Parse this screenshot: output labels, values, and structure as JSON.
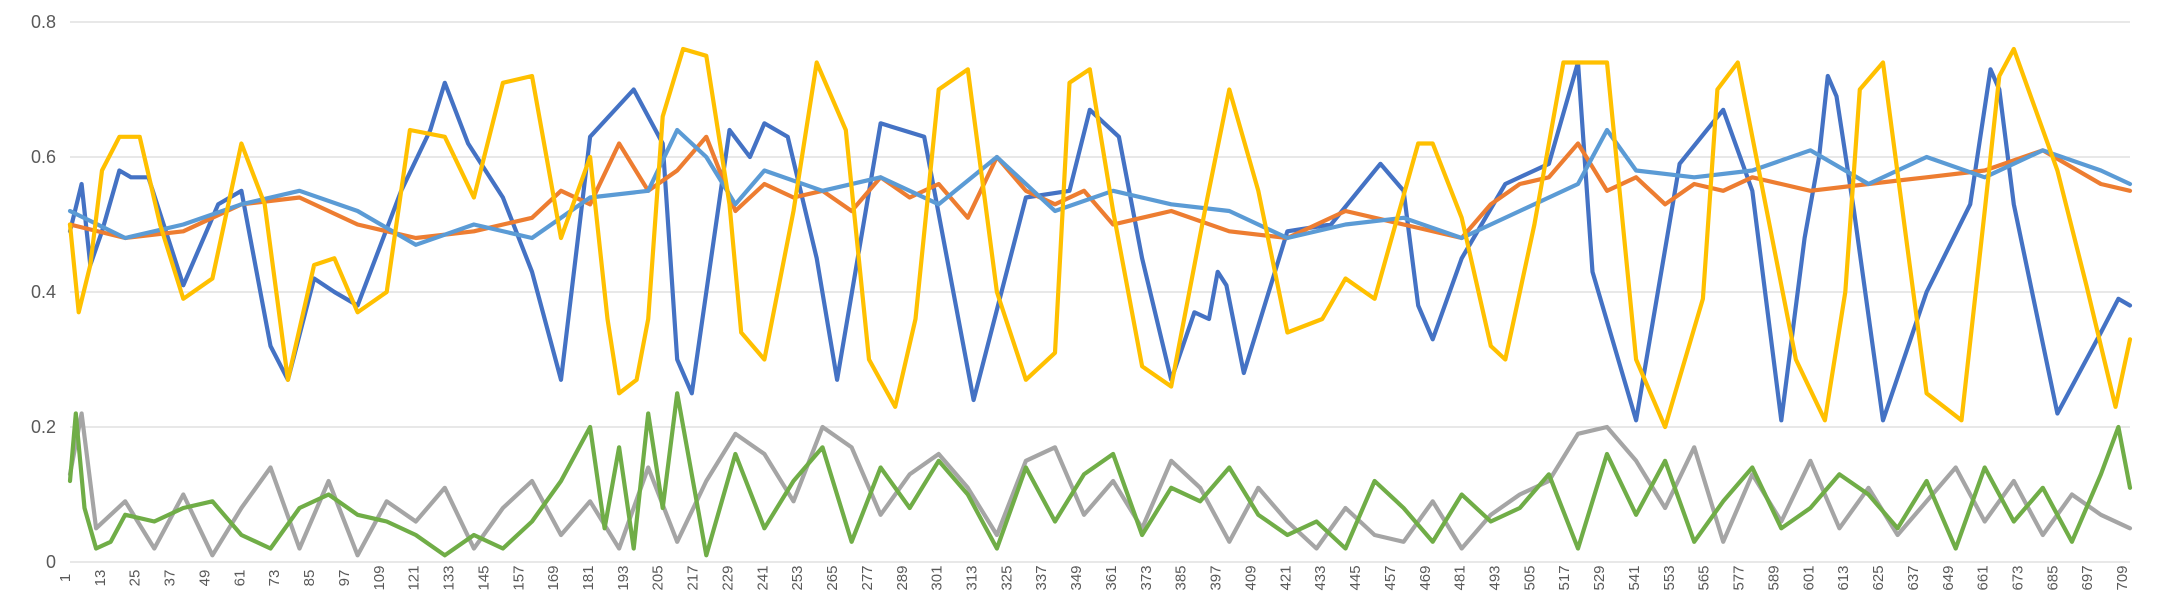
{
  "chart_data": {
    "type": "line",
    "title": "",
    "xlabel": "",
    "ylabel": "",
    "ylim": [
      0,
      0.8
    ],
    "yticks": [
      0,
      0.2,
      0.4,
      0.6,
      0.8
    ],
    "ytick_labels": [
      "0",
      "0.2",
      "0.4",
      "0.6",
      "0.8"
    ],
    "grid": true,
    "legend": "none",
    "n_points": 710,
    "xtick_labels": [
      "1",
      "13",
      "25",
      "37",
      "49",
      "61",
      "73",
      "85",
      "97",
      "109",
      "121",
      "133",
      "145",
      "157",
      "169",
      "181",
      "193",
      "205",
      "217",
      "229",
      "241",
      "253",
      "265",
      "277",
      "289",
      "301",
      "313",
      "325",
      "337",
      "349",
      "361",
      "373",
      "385",
      "397",
      "409",
      "421",
      "433",
      "445",
      "457",
      "469",
      "481",
      "493",
      "505",
      "517",
      "529",
      "541",
      "553",
      "565",
      "577",
      "589",
      "601",
      "613",
      "625",
      "637",
      "649",
      "661",
      "673",
      "685",
      "697",
      "709"
    ],
    "series": [
      {
        "color": "#4472C4",
        "x": [
          1,
          5,
          8,
          12,
          18,
          22,
          28,
          40,
          52,
          60,
          70,
          76,
          85,
          92,
          100,
          115,
          125,
          130,
          138,
          150,
          160,
          170,
          180,
          195,
          205,
          210,
          215,
          220,
          228,
          235,
          240,
          248,
          258,
          265,
          280,
          295,
          312,
          330,
          345,
          352,
          362,
          370,
          380,
          388,
          393,
          396,
          399,
          405,
          420,
          435,
          452,
          460,
          465,
          470,
          480,
          495,
          510,
          520,
          525,
          540,
          555,
          570,
          580,
          590,
          598,
          603,
          606,
          609,
          615,
          625,
          640,
          655,
          662,
          665,
          670,
          685,
          700,
          706,
          710
        ],
        "values": [
          0.49,
          0.56,
          0.44,
          0.49,
          0.58,
          0.57,
          0.57,
          0.41,
          0.53,
          0.55,
          0.32,
          0.27,
          0.42,
          0.4,
          0.38,
          0.55,
          0.64,
          0.71,
          0.62,
          0.54,
          0.43,
          0.27,
          0.63,
          0.7,
          0.62,
          0.3,
          0.25,
          0.4,
          0.64,
          0.6,
          0.65,
          0.63,
          0.45,
          0.27,
          0.65,
          0.63,
          0.24,
          0.54,
          0.55,
          0.67,
          0.63,
          0.45,
          0.27,
          0.37,
          0.36,
          0.43,
          0.41,
          0.28,
          0.49,
          0.5,
          0.59,
          0.55,
          0.38,
          0.33,
          0.45,
          0.56,
          0.59,
          0.74,
          0.43,
          0.21,
          0.59,
          0.67,
          0.55,
          0.21,
          0.48,
          0.6,
          0.72,
          0.69,
          0.52,
          0.21,
          0.4,
          0.53,
          0.73,
          0.7,
          0.53,
          0.22,
          0.34,
          0.39,
          0.38
        ]
      },
      {
        "color": "#ED7D31",
        "x": [
          1,
          20,
          40,
          60,
          80,
          100,
          120,
          140,
          160,
          170,
          180,
          190,
          200,
          210,
          220,
          230,
          240,
          250,
          260,
          270,
          280,
          290,
          300,
          310,
          320,
          330,
          340,
          350,
          360,
          380,
          400,
          420,
          440,
          460,
          480,
          490,
          500,
          510,
          520,
          530,
          540,
          550,
          560,
          570,
          580,
          590,
          600,
          620,
          640,
          660,
          680,
          700,
          710
        ],
        "values": [
          0.5,
          0.48,
          0.49,
          0.53,
          0.54,
          0.5,
          0.48,
          0.49,
          0.51,
          0.55,
          0.53,
          0.62,
          0.55,
          0.58,
          0.63,
          0.52,
          0.56,
          0.54,
          0.55,
          0.52,
          0.57,
          0.54,
          0.56,
          0.51,
          0.6,
          0.55,
          0.53,
          0.55,
          0.5,
          0.52,
          0.49,
          0.48,
          0.52,
          0.5,
          0.48,
          0.53,
          0.56,
          0.57,
          0.62,
          0.55,
          0.57,
          0.53,
          0.56,
          0.55,
          0.57,
          0.56,
          0.55,
          0.56,
          0.57,
          0.58,
          0.61,
          0.56,
          0.55
        ]
      },
      {
        "color": "#5B9BD5",
        "x": [
          1,
          20,
          40,
          60,
          80,
          100,
          120,
          140,
          160,
          180,
          200,
          210,
          220,
          230,
          240,
          260,
          280,
          300,
          320,
          340,
          360,
          380,
          400,
          420,
          440,
          460,
          480,
          500,
          520,
          530,
          540,
          560,
          580,
          600,
          620,
          640,
          660,
          680,
          700,
          710
        ],
        "values": [
          0.52,
          0.48,
          0.5,
          0.53,
          0.55,
          0.52,
          0.47,
          0.5,
          0.48,
          0.54,
          0.55,
          0.64,
          0.6,
          0.53,
          0.58,
          0.55,
          0.57,
          0.53,
          0.6,
          0.52,
          0.55,
          0.53,
          0.52,
          0.48,
          0.5,
          0.51,
          0.48,
          0.52,
          0.56,
          0.64,
          0.58,
          0.57,
          0.58,
          0.61,
          0.56,
          0.6,
          0.57,
          0.61,
          0.58,
          0.56
        ]
      },
      {
        "color": "#FFC000",
        "x": [
          1,
          4,
          8,
          12,
          18,
          25,
          32,
          40,
          50,
          60,
          68,
          76,
          85,
          92,
          100,
          110,
          118,
          130,
          140,
          150,
          160,
          170,
          180,
          186,
          190,
          196,
          200,
          205,
          212,
          220,
          228,
          232,
          240,
          250,
          258,
          268,
          276,
          285,
          292,
          300,
          310,
          320,
          330,
          340,
          345,
          352,
          360,
          370,
          380,
          392,
          400,
          410,
          420,
          432,
          440,
          450,
          465,
          470,
          480,
          490,
          495,
          505,
          515,
          530,
          540,
          550,
          563,
          568,
          575,
          585,
          595,
          605,
          612,
          617,
          625,
          640,
          652,
          660,
          665,
          670,
          685,
          695,
          705,
          710
        ],
        "values": [
          0.5,
          0.37,
          0.44,
          0.58,
          0.63,
          0.63,
          0.5,
          0.39,
          0.42,
          0.62,
          0.53,
          0.27,
          0.44,
          0.45,
          0.37,
          0.4,
          0.64,
          0.63,
          0.54,
          0.71,
          0.72,
          0.48,
          0.6,
          0.36,
          0.25,
          0.27,
          0.36,
          0.66,
          0.76,
          0.75,
          0.53,
          0.34,
          0.3,
          0.52,
          0.74,
          0.64,
          0.3,
          0.23,
          0.36,
          0.7,
          0.73,
          0.4,
          0.27,
          0.31,
          0.71,
          0.73,
          0.52,
          0.29,
          0.26,
          0.53,
          0.7,
          0.55,
          0.34,
          0.36,
          0.42,
          0.39,
          0.62,
          0.62,
          0.51,
          0.32,
          0.3,
          0.5,
          0.74,
          0.74,
          0.3,
          0.2,
          0.39,
          0.7,
          0.74,
          0.52,
          0.3,
          0.21,
          0.4,
          0.7,
          0.74,
          0.25,
          0.21,
          0.52,
          0.72,
          0.76,
          0.58,
          0.41,
          0.23,
          0.33
        ]
      },
      {
        "color": "#A5A5A5",
        "x": [
          1,
          5,
          10,
          20,
          30,
          40,
          50,
          60,
          70,
          80,
          90,
          100,
          110,
          120,
          130,
          140,
          150,
          160,
          170,
          180,
          190,
          200,
          210,
          220,
          230,
          240,
          250,
          260,
          270,
          280,
          290,
          300,
          310,
          320,
          330,
          340,
          350,
          360,
          370,
          380,
          390,
          400,
          410,
          420,
          430,
          440,
          450,
          460,
          470,
          480,
          490,
          500,
          510,
          520,
          530,
          540,
          550,
          560,
          570,
          580,
          590,
          600,
          610,
          620,
          630,
          640,
          650,
          660,
          670,
          680,
          690,
          700,
          710
        ],
        "values": [
          0.13,
          0.22,
          0.05,
          0.09,
          0.02,
          0.1,
          0.01,
          0.08,
          0.14,
          0.02,
          0.12,
          0.01,
          0.09,
          0.06,
          0.11,
          0.02,
          0.08,
          0.12,
          0.04,
          0.09,
          0.02,
          0.14,
          0.03,
          0.12,
          0.19,
          0.16,
          0.09,
          0.2,
          0.17,
          0.07,
          0.13,
          0.16,
          0.11,
          0.04,
          0.15,
          0.17,
          0.07,
          0.12,
          0.05,
          0.15,
          0.11,
          0.03,
          0.11,
          0.06,
          0.02,
          0.08,
          0.04,
          0.03,
          0.09,
          0.02,
          0.07,
          0.1,
          0.12,
          0.19,
          0.2,
          0.15,
          0.08,
          0.17,
          0.03,
          0.13,
          0.06,
          0.15,
          0.05,
          0.11,
          0.04,
          0.09,
          0.14,
          0.06,
          0.12,
          0.04,
          0.1,
          0.07,
          0.05
        ]
      },
      {
        "color": "#70AD47",
        "x": [
          1,
          3,
          6,
          10,
          15,
          20,
          30,
          40,
          50,
          60,
          70,
          80,
          90,
          100,
          110,
          120,
          130,
          140,
          150,
          160,
          170,
          180,
          185,
          190,
          195,
          200,
          205,
          210,
          220,
          230,
          240,
          250,
          260,
          270,
          280,
          290,
          300,
          310,
          320,
          330,
          340,
          350,
          360,
          370,
          380,
          390,
          400,
          410,
          420,
          430,
          440,
          450,
          460,
          470,
          480,
          490,
          500,
          510,
          520,
          530,
          540,
          550,
          560,
          570,
          580,
          590,
          600,
          610,
          620,
          630,
          640,
          650,
          660,
          670,
          680,
          690,
          700,
          706,
          710
        ],
        "values": [
          0.12,
          0.22,
          0.08,
          0.02,
          0.03,
          0.07,
          0.06,
          0.08,
          0.09,
          0.04,
          0.02,
          0.08,
          0.1,
          0.07,
          0.06,
          0.04,
          0.01,
          0.04,
          0.02,
          0.06,
          0.12,
          0.2,
          0.05,
          0.17,
          0.02,
          0.22,
          0.08,
          0.25,
          0.01,
          0.16,
          0.05,
          0.12,
          0.17,
          0.03,
          0.14,
          0.08,
          0.15,
          0.1,
          0.02,
          0.14,
          0.06,
          0.13,
          0.16,
          0.04,
          0.11,
          0.09,
          0.14,
          0.07,
          0.04,
          0.06,
          0.02,
          0.12,
          0.08,
          0.03,
          0.1,
          0.06,
          0.08,
          0.13,
          0.02,
          0.16,
          0.07,
          0.15,
          0.03,
          0.09,
          0.14,
          0.05,
          0.08,
          0.13,
          0.1,
          0.05,
          0.12,
          0.02,
          0.14,
          0.06,
          0.11,
          0.03,
          0.13,
          0.2,
          0.11
        ]
      }
    ]
  }
}
